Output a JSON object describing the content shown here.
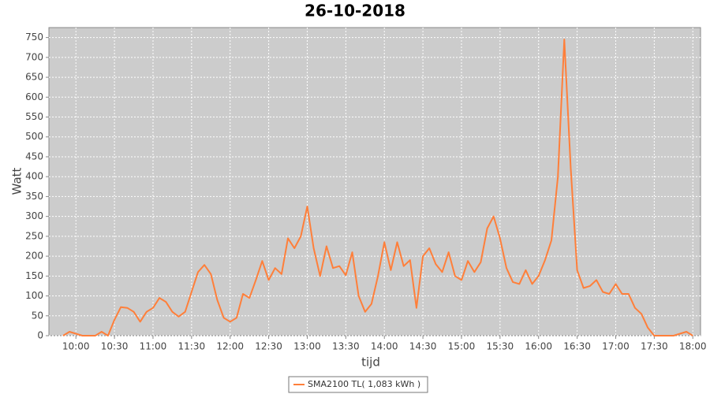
{
  "chart_data": {
    "type": "line",
    "title": "26-10-2018",
    "x_label": "tijd",
    "y_label": "Watt",
    "x": [
      "09:50",
      "09:55",
      "10:00",
      "10:05",
      "10:10",
      "10:15",
      "10:20",
      "10:25",
      "10:30",
      "10:35",
      "10:40",
      "10:45",
      "10:50",
      "10:55",
      "11:00",
      "11:05",
      "11:10",
      "11:15",
      "11:20",
      "11:25",
      "11:30",
      "11:35",
      "11:40",
      "11:45",
      "11:50",
      "11:55",
      "12:00",
      "12:05",
      "12:10",
      "12:15",
      "12:20",
      "12:25",
      "12:30",
      "12:35",
      "12:40",
      "12:45",
      "12:50",
      "12:55",
      "13:00",
      "13:05",
      "13:10",
      "13:15",
      "13:20",
      "13:25",
      "13:30",
      "13:35",
      "13:40",
      "13:45",
      "13:50",
      "13:55",
      "14:00",
      "14:05",
      "14:10",
      "14:15",
      "14:20",
      "14:25",
      "14:30",
      "14:35",
      "14:40",
      "14:45",
      "14:50",
      "14:55",
      "15:00",
      "15:05",
      "15:10",
      "15:15",
      "15:20",
      "15:25",
      "15:30",
      "15:35",
      "15:40",
      "15:45",
      "15:50",
      "15:55",
      "16:00",
      "16:05",
      "16:10",
      "16:15",
      "16:20",
      "16:25",
      "16:30",
      "16:35",
      "16:40",
      "16:45",
      "16:50",
      "16:55",
      "17:00",
      "17:05",
      "17:10",
      "17:15",
      "17:20",
      "17:25",
      "17:30",
      "17:35",
      "17:40",
      "17:45",
      "17:50",
      "17:55",
      "18:00"
    ],
    "series": [
      {
        "name": "SMA2100 TL( 1,083 kWh )",
        "color": "#ff7f3a",
        "values": [
          0,
          10,
          5,
          0,
          0,
          0,
          10,
          0,
          40,
          72,
          70,
          60,
          35,
          60,
          70,
          95,
          85,
          60,
          48,
          60,
          110,
          160,
          178,
          155,
          90,
          45,
          35,
          45,
          105,
          95,
          140,
          188,
          140,
          170,
          155,
          245,
          220,
          250,
          325,
          220,
          150,
          225,
          170,
          175,
          152,
          210,
          100,
          60,
          80,
          150,
          235,
          165,
          235,
          175,
          190,
          70,
          200,
          220,
          180,
          160,
          210,
          150,
          140,
          188,
          160,
          185,
          270,
          300,
          245,
          170,
          135,
          130,
          165,
          130,
          150,
          190,
          240,
          400,
          745,
          420,
          165,
          120,
          125,
          140,
          110,
          105,
          130,
          105,
          105,
          70,
          55,
          20,
          0,
          0,
          0,
          0,
          5,
          10,
          0
        ]
      }
    ],
    "xlim": [
      "09:39",
      "18:06"
    ],
    "xticks": [
      "10:00",
      "10:30",
      "11:00",
      "11:30",
      "12:00",
      "12:30",
      "13:00",
      "13:30",
      "14:00",
      "14:30",
      "15:00",
      "15:30",
      "16:00",
      "16:30",
      "17:00",
      "17:30",
      "18:00"
    ],
    "ylim": [
      0,
      775
    ],
    "yticks": [
      0,
      50,
      100,
      150,
      200,
      250,
      300,
      350,
      400,
      450,
      500,
      550,
      600,
      650,
      700,
      750
    ],
    "grid": true,
    "legend": "bottom"
  }
}
